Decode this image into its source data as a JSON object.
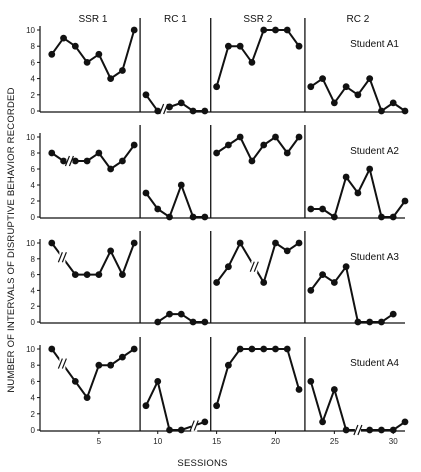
{
  "chart_data": {
    "type": "line",
    "xlabel": "SESSIONS",
    "ylabel": "NUMBER OF INTERVALS OF DISRUPTIVE BEHAVIOR RECORDED",
    "xlim": [
      0,
      31
    ],
    "ylim": [
      0,
      10
    ],
    "x_ticks": [
      5,
      10,
      15,
      20,
      25,
      30
    ],
    "y_ticks": [
      0,
      2,
      4,
      6,
      8,
      10
    ],
    "phases": [
      {
        "label": "SSR 1",
        "start": 1,
        "end": 8
      },
      {
        "label": "RC 1",
        "start": 9,
        "end": 14
      },
      {
        "label": "SSR 2",
        "start": 15,
        "end": 22
      },
      {
        "label": "RC 2",
        "start": 23,
        "end": 31
      }
    ],
    "phase_change_lines": [
      8.5,
      14.5,
      22.5
    ],
    "panels": [
      {
        "name": "Student A1",
        "segments": [
          {
            "x": [
              1,
              2,
              3,
              4,
              5,
              6,
              7,
              8
            ],
            "y": [
              7,
              9,
              8,
              6,
              7,
              4,
              5,
              10
            ]
          },
          {
            "x": [
              9,
              10,
              11,
              12,
              13,
              14
            ],
            "y": [
              2,
              0,
              0.5,
              1,
              0,
              0
            ]
          },
          {
            "x": [
              15,
              16,
              17,
              18,
              19,
              20,
              21,
              22
            ],
            "y": [
              3,
              8,
              8,
              6,
              10,
              10,
              10,
              8
            ]
          },
          {
            "x": [
              23,
              24,
              25,
              26,
              27,
              28,
              29,
              30,
              31
            ],
            "y": [
              3,
              4,
              1,
              3,
              2,
              4,
              0,
              1,
              0
            ]
          }
        ],
        "breaks": [
          10.5
        ]
      },
      {
        "name": "Student A2",
        "segments": [
          {
            "x": [
              1,
              2,
              3,
              4,
              5,
              6,
              7,
              8
            ],
            "y": [
              8,
              7,
              7,
              7,
              8,
              6,
              7,
              9
            ]
          },
          {
            "x": [
              9,
              10,
              11,
              12,
              13,
              14
            ],
            "y": [
              3,
              1,
              0,
              4,
              0,
              0
            ]
          },
          {
            "x": [
              15,
              16,
              17,
              18,
              19,
              20,
              21,
              22
            ],
            "y": [
              8,
              9,
              10,
              7,
              9,
              10,
              8,
              10
            ]
          },
          {
            "x": [
              23,
              24,
              25,
              26,
              27,
              28,
              29,
              30,
              31
            ],
            "y": [
              1,
              1,
              0,
              5,
              3,
              6,
              0,
              0,
              2
            ]
          }
        ],
        "breaks": [
          2.5
        ]
      },
      {
        "name": "Student A3",
        "segments": [
          {
            "x": [
              1,
              3,
              4,
              5,
              6,
              7,
              8
            ],
            "y": [
              10,
              6,
              6,
              6,
              9,
              6,
              10
            ]
          },
          {
            "x": [
              10,
              11,
              12,
              13,
              14
            ],
            "y": [
              0,
              1,
              1,
              0,
              0
            ]
          },
          {
            "x": [
              15,
              16,
              17,
              19,
              20,
              21,
              22
            ],
            "y": [
              5,
              7,
              10,
              5,
              10,
              9,
              10
            ]
          },
          {
            "x": [
              23,
              24,
              25,
              26,
              27,
              28,
              29,
              30
            ],
            "y": [
              4,
              6,
              5,
              7,
              0,
              0,
              0,
              1
            ]
          }
        ],
        "breaks": [
          1.9,
          18.2
        ]
      },
      {
        "name": "Student A4",
        "segments": [
          {
            "x": [
              1,
              3,
              4,
              5,
              6,
              7,
              8
            ],
            "y": [
              10,
              6,
              4,
              8,
              8,
              9,
              10
            ]
          },
          {
            "x": [
              9,
              10,
              11,
              12,
              14
            ],
            "y": [
              3,
              6,
              0,
              0,
              1
            ]
          },
          {
            "x": [
              15,
              16,
              17,
              18,
              19,
              20,
              21,
              22
            ],
            "y": [
              3,
              8,
              10,
              10,
              10,
              10,
              10,
              5
            ]
          },
          {
            "x": [
              23,
              24,
              25,
              26,
              28,
              29,
              30,
              31
            ],
            "y": [
              6,
              1,
              5,
              0,
              0,
              0,
              0,
              1
            ]
          }
        ],
        "breaks": [
          1.9,
          13.1,
          27
        ]
      }
    ]
  }
}
